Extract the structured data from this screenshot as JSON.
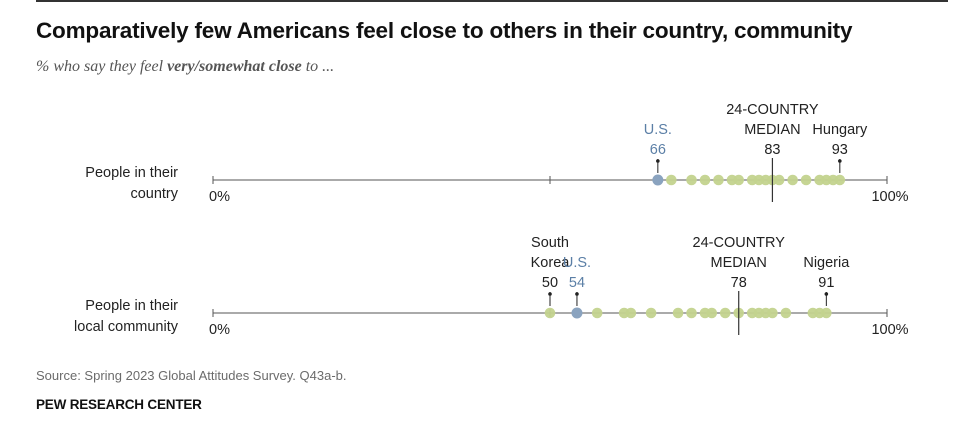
{
  "title": "Comparatively few Americans feel close to others in their country, community",
  "subtitle": {
    "prefix": "% who say they feel ",
    "emphasis": "very/somewhat close",
    "suffix": " to ..."
  },
  "source": "Source: Spring 2023 Global Attitudes Survey. Q43a-b.",
  "brand": "PEW RESEARCH CENTER",
  "colors": {
    "dot_other": "#c3d38e",
    "dot_us": "#8aa3bf",
    "us_label": "#5b7fa6",
    "axis": "#555555",
    "text": "#222222"
  },
  "chart_data": {
    "type": "dot-plot",
    "xlim": [
      0,
      100
    ],
    "axis_start_label": "0%",
    "axis_end_label": "100%",
    "rows": [
      {
        "label": [
          "People in their",
          "country"
        ],
        "us_value": 66,
        "median": 83,
        "values": [
          66,
          68,
          71,
          73,
          75,
          77,
          78,
          80,
          81,
          82,
          83,
          84,
          86,
          88,
          90,
          91,
          92,
          93
        ],
        "annotations": [
          {
            "lines": [
              "U.S.",
              "66"
            ],
            "value": 66,
            "highlight": true
          },
          {
            "lines": [
              "24-COUNTRY",
              "MEDIAN",
              "83"
            ],
            "value": 83,
            "median": true
          },
          {
            "lines": [
              "Hungary",
              "93"
            ],
            "value": 93
          }
        ]
      },
      {
        "label": [
          "People in their",
          "local community"
        ],
        "us_value": 54,
        "median": 78,
        "values": [
          50,
          54,
          57,
          61,
          62,
          65,
          69,
          71,
          73,
          74,
          76,
          78,
          80,
          81,
          82,
          83,
          85,
          89,
          90,
          91
        ],
        "annotations": [
          {
            "lines": [
              "South",
              "Korea",
              "50"
            ],
            "value": 50
          },
          {
            "lines": [
              "U.S.",
              "54"
            ],
            "value": 54,
            "highlight": true
          },
          {
            "lines": [
              "24-COUNTRY",
              "MEDIAN",
              "78"
            ],
            "value": 78,
            "median": true
          },
          {
            "lines": [
              "Nigeria",
              "91"
            ],
            "value": 91
          }
        ]
      }
    ]
  }
}
